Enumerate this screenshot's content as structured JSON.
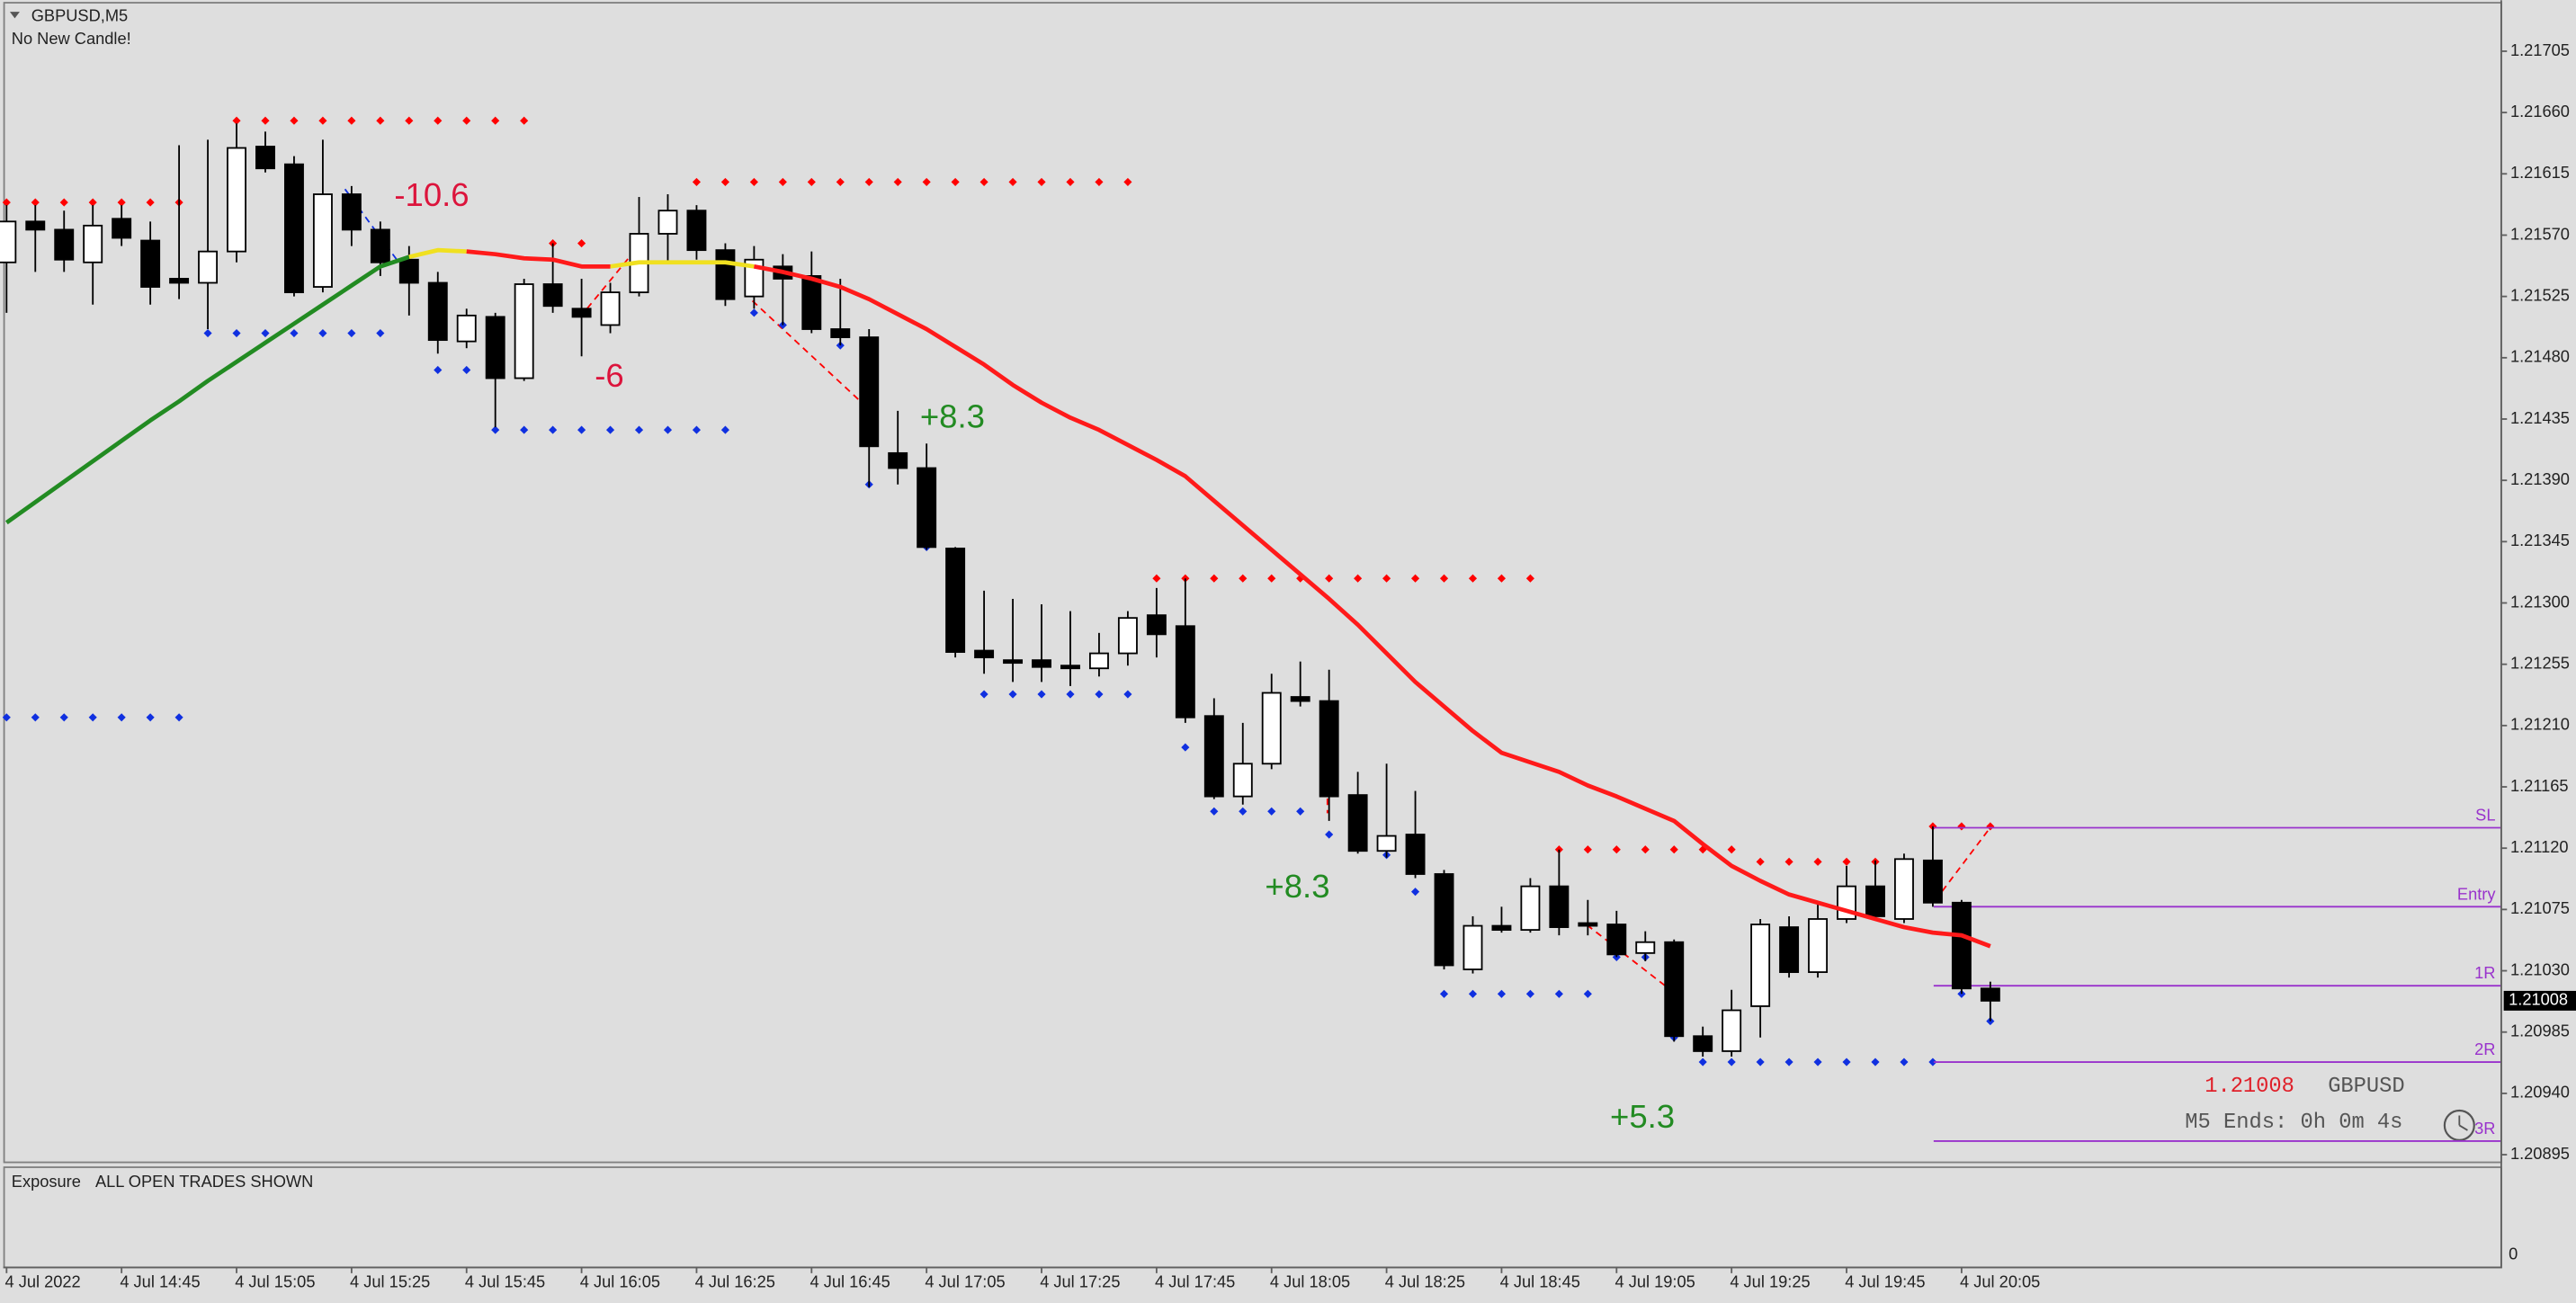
{
  "chart_data": {
    "type": "candlestick",
    "title": "GBPUSD,M5",
    "subtitle": "No New Candle!",
    "symbol": "GBPUSD",
    "timer": "M5 Ends: 0h 0m 4s",
    "up_color": "#ffffff",
    "down_color": "#000000",
    "categories": [
      "4 Jul 2022",
      null,
      null,
      null,
      "4 Jul 14:45",
      null,
      null,
      null,
      "4 Jul 15:05",
      null,
      null,
      null,
      "4 Jul 15:25",
      null,
      null,
      null,
      "4 Jul 15:45",
      null,
      null,
      null,
      "4 Jul 16:05",
      null,
      null,
      null,
      "4 Jul 16:25",
      null,
      null,
      null,
      "4 Jul 16:45",
      null,
      null,
      null,
      "4 Jul 17:05",
      null,
      null,
      null,
      "4 Jul 17:25",
      null,
      null,
      null,
      "4 Jul 17:45",
      null,
      null,
      null,
      "4 Jul 18:05",
      null,
      null,
      null,
      "4 Jul 18:25",
      null,
      null,
      null,
      "4 Jul 18:45",
      null,
      null,
      null,
      "4 Jul 19:05",
      null,
      null,
      null,
      "4 Jul 19:25",
      null,
      null,
      null,
      "4 Jul 19:45",
      null,
      null,
      null,
      "4 Jul 20:05",
      null
    ],
    "open": [
      1.2155,
      1.2158,
      1.21574,
      1.2155,
      1.21582,
      1.21566,
      1.21538,
      1.21535,
      1.21558,
      1.21635,
      1.21622,
      1.21532,
      1.216,
      1.21574,
      1.21552,
      1.21535,
      1.21492,
      1.2151,
      1.21465,
      1.21534,
      1.21516,
      1.21504,
      1.21528,
      1.21571,
      1.21588,
      1.21559,
      1.21525,
      1.21547,
      1.2154,
      1.21501,
      1.21495,
      1.2141,
      1.21399,
      1.2134,
      1.21265,
      1.21258,
      1.21258,
      1.21254,
      1.21252,
      1.21263,
      1.21291,
      1.21283,
      1.21217,
      1.21158,
      1.21182,
      1.21231,
      1.21228,
      1.21159,
      1.21118,
      1.2113,
      1.21101,
      1.21031,
      1.21063,
      1.2106,
      1.21092,
      1.21065,
      1.21064,
      1.21043,
      1.21051,
      1.20982,
      1.20971,
      1.21004,
      1.21062,
      1.21029,
      1.21068,
      1.21092,
      1.21068,
      1.21111,
      1.2108,
      1.21017
    ],
    "high": [
      1.21592,
      1.21592,
      1.21588,
      1.21592,
      1.21592,
      1.2158,
      1.21636,
      1.2164,
      1.21652,
      1.21646,
      1.21628,
      1.2164,
      1.21606,
      1.2158,
      1.21562,
      1.21543,
      1.21516,
      1.21513,
      1.21538,
      1.21564,
      1.21538,
      1.21535,
      1.21598,
      1.216,
      1.21592,
      1.21564,
      1.21562,
      1.21556,
      1.21558,
      1.21538,
      1.21501,
      1.21441,
      1.21417,
      1.21341,
      1.21309,
      1.21303,
      1.21299,
      1.21294,
      1.21278,
      1.21294,
      1.21311,
      1.21318,
      1.2123,
      1.21212,
      1.21248,
      1.21257,
      1.21251,
      1.21176,
      1.21182,
      1.21162,
      1.21104,
      1.2107,
      1.21077,
      1.21098,
      1.21119,
      1.21082,
      1.21074,
      1.21059,
      1.21053,
      1.20989,
      1.21016,
      1.21068,
      1.2107,
      1.2108,
      1.21107,
      1.21111,
      1.21116,
      1.21136,
      1.21082,
      1.21022
    ],
    "low": [
      1.21513,
      1.21543,
      1.21543,
      1.21519,
      1.21562,
      1.21519,
      1.21523,
      1.21501,
      1.2155,
      1.21616,
      1.21525,
      1.21528,
      1.21562,
      1.2154,
      1.21511,
      1.21483,
      1.21487,
      1.21429,
      1.21463,
      1.21513,
      1.21481,
      1.21498,
      1.21525,
      1.2155,
      1.21552,
      1.21518,
      1.21516,
      1.21504,
      1.21498,
      1.21489,
      1.21385,
      1.21387,
      1.21339,
      1.2126,
      1.21248,
      1.21242,
      1.21242,
      1.21239,
      1.21246,
      1.21254,
      1.2126,
      1.21212,
      1.21156,
      1.21152,
      1.21178,
      1.21224,
      1.2114,
      1.21116,
      1.21113,
      1.21098,
      1.21031,
      1.21028,
      1.21058,
      1.21058,
      1.21056,
      1.21056,
      1.2104,
      1.21037,
      1.20978,
      1.20967,
      1.20967,
      1.20981,
      1.21025,
      1.21025,
      1.21065,
      1.21068,
      1.21065,
      1.21077,
      1.21013,
      1.20993
    ],
    "close": [
      1.2158,
      1.21574,
      1.21552,
      1.21577,
      1.21568,
      1.21532,
      1.21535,
      1.21558,
      1.21634,
      1.21619,
      1.21528,
      1.216,
      1.21574,
      1.2155,
      1.21535,
      1.21493,
      1.21511,
      1.21465,
      1.21534,
      1.21518,
      1.2151,
      1.21528,
      1.21571,
      1.21588,
      1.21559,
      1.21523,
      1.21552,
      1.21538,
      1.21501,
      1.21495,
      1.21415,
      1.21399,
      1.21341,
      1.21264,
      1.2126,
      1.21256,
      1.21253,
      1.21252,
      1.21263,
      1.21289,
      1.21277,
      1.21216,
      1.21158,
      1.21182,
      1.21234,
      1.21228,
      1.21158,
      1.21118,
      1.21129,
      1.21101,
      1.21034,
      1.21063,
      1.2106,
      1.21092,
      1.21062,
      1.21063,
      1.21042,
      1.21051,
      1.20982,
      1.20971,
      1.21001,
      1.21064,
      1.21029,
      1.21068,
      1.21092,
      1.2107,
      1.21112,
      1.2108,
      1.21017,
      1.21008
    ],
    "moving_average": [
      {
        "color": "#228b22",
        "values": [
          1.21359,
          1.21374,
          1.21389,
          1.21404,
          1.21419,
          1.21434,
          1.21448,
          1.21463,
          1.21477,
          1.21491,
          1.21505,
          1.21519,
          1.21533,
          1.21547,
          1.21554,
          null,
          null,
          null,
          null,
          null,
          null,
          null,
          null,
          null,
          null,
          null,
          null,
          null,
          null,
          null,
          null,
          null,
          null,
          null,
          null,
          null,
          null,
          null,
          null,
          null,
          null,
          null,
          null,
          null,
          null,
          null,
          null,
          null,
          null,
          null,
          null,
          null,
          null,
          null,
          null,
          null,
          null,
          null,
          null,
          null,
          null,
          null,
          null,
          null,
          null,
          null,
          null,
          null,
          null,
          null
        ]
      },
      {
        "color": "#f0e020",
        "values": [
          null,
          null,
          null,
          null,
          null,
          null,
          null,
          null,
          null,
          null,
          null,
          null,
          null,
          null,
          1.21554,
          1.21559,
          1.21558,
          null,
          null,
          null,
          null,
          1.21547,
          1.2155,
          1.2155,
          1.2155,
          1.2155,
          1.21547,
          null,
          null,
          null,
          null,
          null,
          null,
          null,
          null,
          null,
          null,
          null,
          null,
          null,
          null,
          null,
          null,
          null,
          null,
          null,
          null,
          null,
          null,
          null,
          null,
          null,
          null,
          null,
          null,
          null,
          null,
          null,
          null,
          null,
          null,
          null,
          null,
          null,
          null,
          null,
          null,
          null,
          null,
          null
        ]
      },
      {
        "color": "#ff1a1a",
        "values": [
          null,
          null,
          null,
          null,
          null,
          null,
          null,
          null,
          null,
          null,
          null,
          null,
          null,
          null,
          null,
          null,
          1.21558,
          1.21556,
          1.21553,
          1.21552,
          1.21547,
          1.21547,
          null,
          null,
          null,
          null,
          1.21547,
          1.21543,
          1.21538,
          1.21532,
          1.21523,
          1.21512,
          1.21501,
          1.21488,
          1.21475,
          1.2146,
          1.21447,
          1.21436,
          1.21427,
          1.21416,
          1.21405,
          1.21393,
          1.21375,
          1.21357,
          1.21339,
          1.21321,
          1.21303,
          1.21284,
          1.21263,
          1.21242,
          1.21224,
          1.21206,
          1.2119,
          1.21183,
          1.21176,
          1.21166,
          1.21158,
          1.21149,
          1.2114,
          1.21123,
          1.21107,
          1.21096,
          1.21086,
          1.2108,
          1.21074,
          1.21068,
          1.21062,
          1.21058,
          1.21056,
          1.21048
        ]
      }
    ],
    "fractals": [
      {
        "color": "#ff0000",
        "values": [
          1.21594,
          1.21594,
          1.21594,
          1.21594,
          1.21594,
          1.21594,
          1.21594,
          null,
          1.21654,
          1.21654,
          1.21654,
          1.21654,
          1.21654,
          1.21654,
          1.21654,
          1.21654,
          1.21654,
          1.21654,
          1.21654,
          1.21564,
          1.21564,
          null,
          null,
          null,
          1.21609,
          1.21609,
          1.21609,
          1.21609,
          1.21609,
          1.21609,
          1.21609,
          1.21609,
          1.21609,
          1.21609,
          1.21609,
          1.21609,
          1.21609,
          1.21609,
          1.21609,
          1.21609,
          1.21318,
          1.21318,
          1.21318,
          1.21318,
          1.21318,
          1.21318,
          1.21318,
          1.21318,
          1.21318,
          1.21318,
          1.21318,
          1.21318,
          1.21318,
          1.21318,
          1.21119,
          1.21119,
          1.21119,
          1.21119,
          1.21119,
          1.21119,
          1.21119,
          1.2111,
          1.2111,
          1.2111,
          1.2111,
          1.2111,
          1.2111,
          1.21136,
          1.21136,
          1.21136
        ]
      },
      {
        "color": "#1030e0",
        "values": [
          1.21216,
          1.21216,
          1.21216,
          1.21216,
          1.21216,
          1.21216,
          1.21216,
          1.21498,
          1.21498,
          1.21498,
          1.21498,
          1.21498,
          1.21498,
          1.21498,
          null,
          1.21471,
          1.21471,
          1.21427,
          1.21427,
          1.21427,
          1.21427,
          1.21427,
          1.21427,
          1.21427,
          1.21427,
          1.21427,
          1.21513,
          1.21504,
          1.21504,
          1.21489,
          1.21387,
          null,
          1.21341,
          null,
          1.21233,
          1.21233,
          1.21233,
          1.21233,
          1.21233,
          1.21233,
          null,
          1.21194,
          1.21147,
          1.21147,
          1.21147,
          1.21147,
          1.2113,
          null,
          1.21115,
          1.21088,
          1.21013,
          1.21013,
          1.21013,
          1.21013,
          1.21013,
          1.21013,
          1.2104,
          1.2104,
          1.20981,
          1.20963,
          1.20963,
          1.20963,
          1.20963,
          1.20963,
          1.20963,
          1.20963,
          1.20963,
          1.20963,
          1.21013,
          1.20993
        ]
      }
    ],
    "annotations": [
      {
        "text": "-10.6",
        "color": "#dc143c"
      },
      {
        "text": "-6",
        "color": "#dc143c"
      },
      {
        "text": "+8.3",
        "color": "#228b22"
      },
      {
        "text": "+8.3",
        "color": "#228b22"
      },
      {
        "text": "+5.3",
        "color": "#228b22"
      }
    ],
    "trade_levels_color": "#9932cc",
    "trade_levels": [
      {
        "label": "SL",
        "value": 1.21135
      },
      {
        "label": "Entry",
        "value": 1.21077
      },
      {
        "label": "1R",
        "value": 1.21019
      },
      {
        "label": "2R",
        "value": 1.20963
      },
      {
        "label": "3R",
        "value": 1.20905
      }
    ],
    "current_price": 1.21008,
    "ylim": [
      1.2089,
      1.2174
    ],
    "yticks": [
      1.21705,
      {
        "value": 1.2166,
        "label": "1.21660"
      },
      1.21615,
      {
        "value": 1.2157,
        "label": "1.21570"
      },
      1.21525,
      {
        "value": 1.2148,
        "label": "1.21480"
      },
      1.21435,
      {
        "value": 1.2139,
        "label": "1.21390"
      },
      1.21345,
      {
        "value": 1.213,
        "label": "1.21300"
      },
      1.21255,
      {
        "value": 1.2121,
        "label": "1.21210"
      },
      1.21165,
      {
        "value": 1.2112,
        "label": "1.21120"
      },
      1.21075,
      {
        "value": 1.2103,
        "label": "1.21030"
      },
      1.20985,
      {
        "value": 1.2094,
        "label": "1.20940"
      },
      1.20895
    ]
  },
  "exposure_panel": {
    "title": "Exposure",
    "note": "ALL OPEN TRADES SHOWN",
    "yticks": [
      0
    ]
  }
}
